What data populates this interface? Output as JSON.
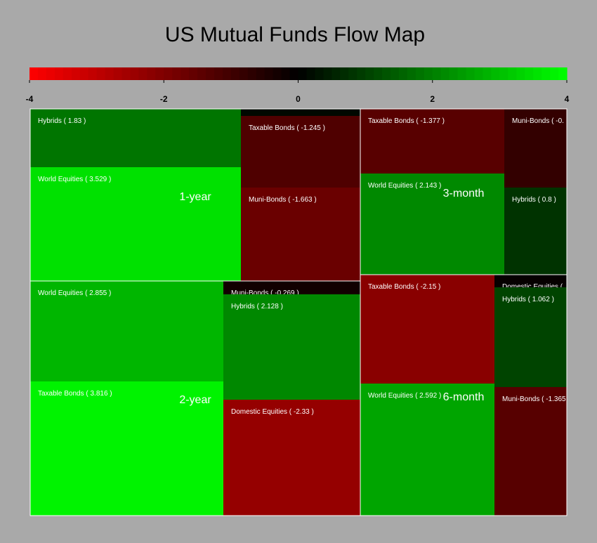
{
  "chart_data": {
    "type": "heatmap",
    "title": "US Mutual Funds Flow Map",
    "colorscale": {
      "min": -4,
      "max": 4,
      "ticks": [
        -4,
        -2,
        0,
        2,
        4
      ],
      "tick_labels": [
        "-4",
        "-2",
        "0",
        "2",
        "4"
      ],
      "low_color": "#ff0000",
      "mid_color": "#000000",
      "high_color": "#00ff00"
    },
    "groups": [
      {
        "name": "1-year",
        "cells": [
          {
            "label": "Hybrids ( 1.83 )",
            "value": 1.83
          },
          {
            "label": "World Equities ( 3.529 )",
            "value": 3.529
          },
          {
            "label": "",
            "value": 0.12
          },
          {
            "label": "Taxable Bonds ( -1.245 )",
            "value": -1.245
          },
          {
            "label": "Muni-Bonds ( -1.663 )",
            "value": -1.663
          }
        ]
      },
      {
        "name": "3-month",
        "cells": [
          {
            "label": "Taxable Bonds ( -1.377 )",
            "value": -1.377
          },
          {
            "label": "World Equities ( 2.143 )",
            "value": 2.143
          },
          {
            "label": "Muni-Bonds ( -0.",
            "value": -0.8
          },
          {
            "label": "Hybrids ( 0.8 )",
            "value": 0.8
          }
        ]
      },
      {
        "name": "2-year",
        "cells": [
          {
            "label": "World Equities ( 2.855 )",
            "value": 2.855
          },
          {
            "label": "Taxable Bonds ( 3.816 )",
            "value": 3.816
          },
          {
            "label": "Muni-Bonds ( -0.269 )",
            "value": -0.269
          },
          {
            "label": "Hybrids ( 2.128 )",
            "value": 2.128
          },
          {
            "label": "Domestic Equities ( -2.33 )",
            "value": -2.33
          }
        ]
      },
      {
        "name": "6-month",
        "cells": [
          {
            "label": "Taxable Bonds ( -2.15 )",
            "value": -2.15
          },
          {
            "label": "World Equities ( 2.592 )",
            "value": 2.592
          },
          {
            "label": "Domestic Equities (",
            "value": -0.1
          },
          {
            "label": "Hybrids ( 1.062 )",
            "value": 1.062
          },
          {
            "label": "Muni-Bonds ( -1.365",
            "value": -1.365
          }
        ]
      }
    ]
  }
}
